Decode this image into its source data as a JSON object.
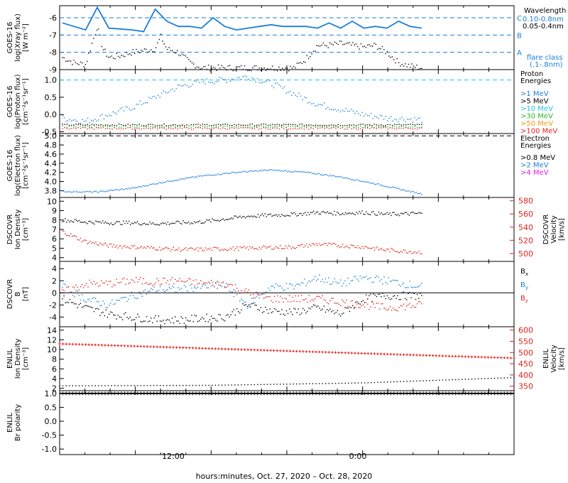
{
  "chart_data": [
    {
      "panel": "xray",
      "type": "line",
      "ylabel": [
        "GOES-16",
        "log(Xray flux)",
        "[W m⁻²]"
      ],
      "yticks": [
        "-6",
        "-7",
        "-8",
        "-9"
      ],
      "legend_title": "Wavelength",
      "legend": [
        {
          "name": "0.10-0.8nm",
          "color": "#1a7fd8"
        },
        {
          "name": "0.05-0.4nm",
          "color": "#000000"
        }
      ],
      "flare_class_label": [
        "flare class",
        "(.1-.8nm)"
      ],
      "flare_levels": [
        {
          "class": "C",
          "y": -6
        },
        {
          "class": "B",
          "y": -7
        },
        {
          "class": "A",
          "y": -8
        }
      ],
      "ylim": [
        -9,
        -5.3
      ],
      "series": [
        {
          "color": "#1a7fd8",
          "x": [
            0,
            2,
            3,
            4,
            5,
            6,
            7,
            8,
            9,
            10,
            11,
            12,
            13,
            14,
            15,
            16,
            17,
            18,
            19,
            20,
            21,
            22,
            23,
            24,
            25,
            26,
            27,
            28,
            29,
            30,
            31
          ],
          "values": [
            -6.3,
            -6.7,
            -5.4,
            -6.6,
            -6.65,
            -6.7,
            -6.8,
            -5.5,
            -6.2,
            -6.5,
            -6.5,
            -6.6,
            -6.0,
            -6.5,
            -6.7,
            -6.6,
            -6.5,
            -6.4,
            -6.5,
            -6.5,
            -6.5,
            -6.6,
            -6.3,
            -6.6,
            -6.2,
            -6.6,
            -6.5,
            -6.6,
            -6.2,
            -6.5,
            -6.6
          ]
        },
        {
          "color": "#000000",
          "x": [
            0,
            1,
            2,
            3,
            3.5,
            4,
            5,
            6,
            7,
            8,
            8.5,
            9,
            10,
            11,
            12,
            13,
            14,
            15,
            16,
            17,
            18,
            19,
            20,
            21,
            22,
            23,
            24,
            25,
            26,
            27,
            28,
            29,
            30,
            31
          ],
          "values": [
            -8.3,
            -8.6,
            -8.7,
            -6.5,
            -7.8,
            -8.3,
            -8.2,
            -8.0,
            -7.9,
            -7.8,
            -7.1,
            -7.8,
            -8.0,
            -8.6,
            -8.9,
            -8.9,
            -8.9,
            -8.9,
            -8.9,
            -8.9,
            -8.9,
            -8.9,
            -8.9,
            -8.4,
            -7.6,
            -7.6,
            -7.5,
            -7.6,
            -7.7,
            -7.6,
            -8.0,
            -8.6,
            -8.8,
            -8.9
          ]
        }
      ]
    },
    {
      "panel": "proton",
      "type": "scatter",
      "ylabel": [
        "GOES-16",
        "log(Proton flux)",
        "[cm⁻²s⁻¹sr⁻¹]"
      ],
      "yticks": [
        "1.0",
        "0.5",
        "0.0",
        "-0.5"
      ],
      "ylim": [
        -0.55,
        1.3
      ],
      "reference_line": 1.0,
      "legend_title": [
        "Proton",
        "Energies"
      ],
      "legend": [
        {
          "name": ">1 MeV",
          "color": "#1a7fd8"
        },
        {
          "name": ">5 MeV",
          "color": "#000000"
        },
        {
          "name": ">10 MeV",
          "color": "#21c4e0"
        },
        {
          "name": ">30 MeV",
          "color": "#28b42b"
        },
        {
          "name": ">50 MeV",
          "color": "#e6a11a"
        },
        {
          "name": ">100 MeV",
          "color": "#e0221b"
        }
      ],
      "series": [
        {
          "color": "#1a7fd8",
          "x": [
            0,
            2,
            4,
            6,
            8,
            10,
            12,
            14,
            16,
            18,
            20,
            22,
            24,
            26,
            28,
            31
          ],
          "values": [
            -0.1,
            -0.2,
            0.0,
            0.2,
            0.5,
            0.8,
            0.95,
            1.0,
            1.1,
            0.9,
            0.6,
            0.3,
            0.15,
            0.0,
            -0.1,
            -0.15
          ]
        },
        {
          "color": "#000000",
          "x": [
            0,
            31
          ],
          "values": [
            -0.3,
            -0.3
          ]
        },
        {
          "color": "#28b42b",
          "x": [
            0,
            31
          ],
          "values": [
            -0.35,
            -0.35
          ]
        },
        {
          "color": "#e0221b",
          "x": [
            0,
            31
          ],
          "values": [
            -0.4,
            -0.4
          ]
        }
      ]
    },
    {
      "panel": "electron",
      "type": "scatter",
      "ylabel": [
        "GOES-16",
        "log(Electron flux)",
        "[cm⁻²s⁻¹sr⁻¹]"
      ],
      "yticks": [
        "5.0",
        "4.8",
        "4.6",
        "4.4",
        "4.2",
        "4.0",
        "3.8"
      ],
      "ylim": [
        3.65,
        5.05
      ],
      "reference_line": 5.0,
      "legend_title": [
        "Electron",
        "Energies"
      ],
      "legend": [
        {
          "name": ">0.8 MeV",
          "color": "#000000"
        },
        {
          "name": ">2 MeV",
          "color": "#1a7fd8"
        },
        {
          "name": ">4 MeV",
          "color": "#e020e0"
        }
      ],
      "series": [
        {
          "color": "#1a7fd8",
          "x": [
            0,
            3,
            6,
            9,
            12,
            15,
            18,
            21,
            24,
            27,
            30,
            31
          ],
          "values": [
            3.78,
            3.77,
            3.85,
            4.0,
            4.12,
            4.2,
            4.25,
            4.2,
            4.1,
            3.95,
            3.78,
            3.73
          ]
        }
      ]
    },
    {
      "panel": "dscovr_plasma",
      "type": "scatter",
      "ylabel_left": [
        "DSCOVR",
        "Ion Density",
        "[cm⁻³]"
      ],
      "ylabel_right": [
        "DSCOVR",
        "Velocity",
        "[km/s]"
      ],
      "yticks_left": [
        "10",
        "9",
        "8",
        "7",
        "6",
        "5",
        "4"
      ],
      "yticks_right": [
        "580",
        "560",
        "540",
        "520",
        "500"
      ],
      "series": [
        {
          "name": "density",
          "color": "#000000",
          "x": [
            0,
            2,
            4,
            6,
            8,
            10,
            12,
            14,
            16,
            18,
            20,
            22,
            24,
            26,
            28,
            31
          ],
          "values": [
            8.0,
            7.8,
            7.7,
            7.7,
            7.6,
            7.7,
            7.8,
            8.1,
            8.4,
            8.5,
            8.6,
            8.8,
            8.7,
            8.8,
            8.6,
            8.7
          ]
        },
        {
          "name": "velocity",
          "color": "#e0221b",
          "x": [
            0,
            2,
            4,
            6,
            8,
            10,
            12,
            14,
            16,
            18,
            20,
            22,
            24,
            26,
            28,
            31
          ],
          "values": [
            533,
            518,
            512,
            510,
            508,
            506,
            506,
            507,
            508,
            509,
            510,
            514,
            512,
            510,
            505,
            502
          ]
        }
      ]
    },
    {
      "panel": "dscovr_mag",
      "type": "scatter",
      "ylabel": [
        "DSCOVR",
        "B",
        "[nT]"
      ],
      "yticks": [
        "4",
        "2",
        "0",
        "-2",
        "-4"
      ],
      "legend": [
        {
          "name": "Bx",
          "base": "B",
          "sub": "x",
          "color": "#000000"
        },
        {
          "name": "By",
          "base": "B",
          "sub": "y",
          "color": "#1a7fd8"
        },
        {
          "name": "Bz",
          "base": "B",
          "sub": "z",
          "color": "#e0221b"
        }
      ],
      "series": [
        {
          "name": "Bx",
          "color": "#000000",
          "x": [
            0,
            2,
            4,
            6,
            8,
            10,
            12,
            14,
            16,
            18,
            20,
            22,
            24,
            26,
            28,
            31
          ],
          "values": [
            -1,
            -2.5,
            -3.5,
            -4,
            -4.4,
            -4.5,
            -4.2,
            -4,
            -2,
            -3,
            -3.2,
            -2.5,
            -3.5,
            -1,
            -0.5,
            -0.5
          ]
        },
        {
          "name": "By",
          "color": "#1a7fd8",
          "x": [
            0,
            2,
            4,
            6,
            8,
            10,
            12,
            14,
            16,
            18,
            20,
            22,
            24,
            26,
            28,
            31
          ],
          "values": [
            1,
            -1,
            -2,
            -0.5,
            0.5,
            0.5,
            1,
            1.2,
            -2,
            1,
            1,
            2.5,
            1.5,
            2.5,
            2,
            1
          ]
        },
        {
          "name": "Bz",
          "color": "#e0221b",
          "x": [
            0,
            2,
            4,
            6,
            8,
            10,
            12,
            14,
            16,
            18,
            20,
            22,
            24,
            26,
            28,
            31
          ],
          "values": [
            0,
            1.5,
            1.5,
            2,
            1.8,
            2,
            1.5,
            1.6,
            0,
            -1,
            -1,
            -1,
            -1.5,
            -2,
            -2.5,
            -2
          ]
        }
      ]
    },
    {
      "panel": "enlil_plasma",
      "type": "line",
      "ylabel_left": [
        "ENLIL",
        "Ion Density",
        "[cm⁻³]"
      ],
      "ylabel_right": [
        "ENLIL",
        "Velocity",
        "[km/s]"
      ],
      "yticks_left": [
        "14",
        "12",
        "10",
        "8",
        "6",
        "4",
        "2"
      ],
      "yticks_right": [
        "600",
        "550",
        "500",
        "450",
        "400",
        "350"
      ],
      "series": [
        {
          "name": "velocity",
          "color": "#e0221b",
          "x": [
            0,
            45
          ],
          "values": [
            539,
            475
          ]
        },
        {
          "name": "density",
          "color": "#000000",
          "x": [
            0,
            15,
            30,
            45
          ],
          "values": [
            2.5,
            2.6,
            3.1,
            4.2
          ]
        }
      ]
    },
    {
      "panel": "enlil_polarity",
      "type": "line",
      "ylabel": [
        "ENLIL",
        "Br polarity"
      ],
      "yticks": [
        "1.0",
        "0.5",
        "0.0",
        "-0.5",
        "-1.0"
      ],
      "ylim": [
        -1.2,
        1.1
      ],
      "series": [
        {
          "color": "#000000",
          "x": [
            0,
            45
          ],
          "values": [
            1.0,
            1.0
          ]
        }
      ]
    }
  ],
  "xaxis": {
    "ticks": [
      "12:00",
      "0:00"
    ],
    "label": "hours:minutes, Oct. 27, 2020 – Oct. 28, 2020"
  }
}
